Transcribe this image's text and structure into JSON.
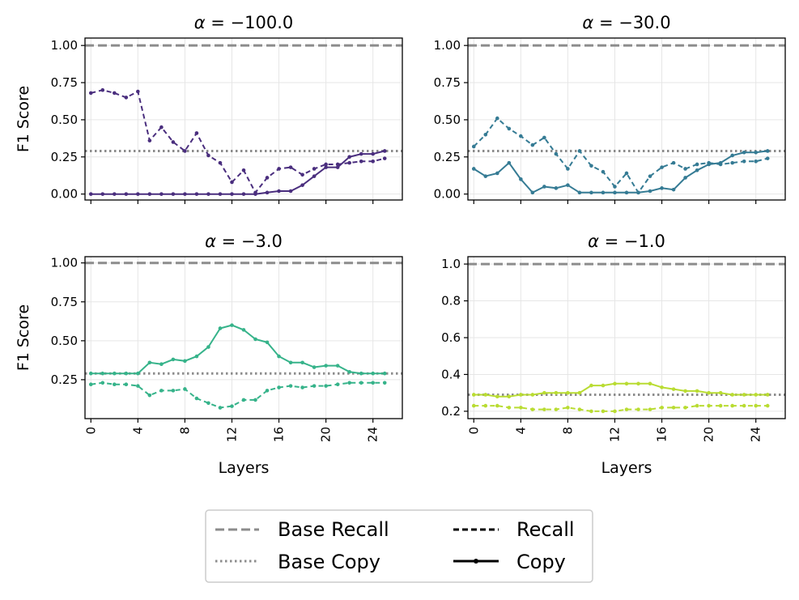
{
  "chart_data": {
    "type": "line",
    "x": [
      0,
      1,
      2,
      3,
      4,
      5,
      6,
      7,
      8,
      9,
      10,
      11,
      12,
      13,
      14,
      15,
      16,
      17,
      18,
      19,
      20,
      21,
      22,
      23,
      24,
      25
    ],
    "x_ticks": [
      "0",
      "4",
      "8",
      "12",
      "16",
      "20",
      "24"
    ],
    "x_tick_values": [
      0,
      4,
      8,
      12,
      16,
      20,
      24
    ],
    "xlim": [
      -0.5,
      26.5
    ],
    "xlabel": "Layers",
    "ylabel": "F1 Score",
    "base_recall": 1.0,
    "base_copy": 0.29,
    "legend": {
      "position": "bottom-center",
      "entries": [
        "Base Recall",
        "Base Copy",
        "Recall",
        "Copy"
      ]
    },
    "panels": [
      {
        "title": "α = −100.0",
        "title_prefix": "α",
        "title_value": "−100.0",
        "color": "#4a2e7e",
        "ylim": [
          -0.04,
          1.05
        ],
        "y_ticks": [
          "0.00",
          "0.25",
          "0.50",
          "0.75",
          "1.00"
        ],
        "y_tick_values": [
          0,
          0.25,
          0.5,
          0.75,
          1.0
        ],
        "show_xlabel": false,
        "show_ylabel": true,
        "recall": [
          0.68,
          0.7,
          0.68,
          0.65,
          0.69,
          0.36,
          0.45,
          0.35,
          0.29,
          0.41,
          0.26,
          0.21,
          0.08,
          0.16,
          0.01,
          0.11,
          0.17,
          0.18,
          0.13,
          0.17,
          0.2,
          0.2,
          0.21,
          0.22,
          0.22,
          0.24
        ],
        "copy": [
          0,
          0,
          0,
          0,
          0,
          0,
          0,
          0,
          0,
          0,
          0,
          0,
          0,
          0,
          0,
          0.01,
          0.02,
          0.02,
          0.06,
          0.12,
          0.18,
          0.18,
          0.25,
          0.27,
          0.27,
          0.29
        ]
      },
      {
        "title": "α = −30.0",
        "title_prefix": "α",
        "title_value": "−30.0",
        "color": "#357b94",
        "ylim": [
          -0.04,
          1.05
        ],
        "y_ticks": [
          "0.00",
          "0.25",
          "0.50",
          "0.75",
          "1.00"
        ],
        "y_tick_values": [
          0,
          0.25,
          0.5,
          0.75,
          1.0
        ],
        "show_xlabel": false,
        "show_ylabel": false,
        "recall": [
          0.32,
          0.4,
          0.51,
          0.44,
          0.39,
          0.33,
          0.38,
          0.27,
          0.17,
          0.29,
          0.19,
          0.15,
          0.05,
          0.14,
          0.01,
          0.12,
          0.18,
          0.21,
          0.17,
          0.2,
          0.21,
          0.2,
          0.21,
          0.22,
          0.22,
          0.24
        ],
        "copy": [
          0.17,
          0.12,
          0.14,
          0.21,
          0.1,
          0.01,
          0.05,
          0.04,
          0.06,
          0.01,
          0.01,
          0.01,
          0.01,
          0.01,
          0.01,
          0.02,
          0.04,
          0.03,
          0.11,
          0.16,
          0.2,
          0.21,
          0.26,
          0.28,
          0.28,
          0.29
        ]
      },
      {
        "title": "α = −3.0",
        "title_prefix": "α",
        "title_value": "−3.0",
        "color": "#36b38a",
        "ylim": [
          0.0,
          1.04
        ],
        "y_ticks": [
          "0.25",
          "0.50",
          "0.75",
          "1.00"
        ],
        "y_tick_values": [
          0.25,
          0.5,
          0.75,
          1.0
        ],
        "show_xlabel": true,
        "show_ylabel": true,
        "recall": [
          0.22,
          0.23,
          0.22,
          0.22,
          0.21,
          0.15,
          0.18,
          0.18,
          0.19,
          0.13,
          0.1,
          0.07,
          0.08,
          0.12,
          0.12,
          0.18,
          0.2,
          0.21,
          0.2,
          0.21,
          0.21,
          0.22,
          0.23,
          0.23,
          0.23,
          0.23
        ],
        "copy": [
          0.29,
          0.29,
          0.29,
          0.29,
          0.29,
          0.36,
          0.35,
          0.38,
          0.37,
          0.4,
          0.46,
          0.58,
          0.6,
          0.57,
          0.51,
          0.49,
          0.4,
          0.36,
          0.36,
          0.33,
          0.34,
          0.34,
          0.3,
          0.29,
          0.29,
          0.29
        ]
      },
      {
        "title": "α = −1.0",
        "title_prefix": "α",
        "title_value": "−1.0",
        "color": "#b9dc32",
        "ylim": [
          0.16,
          1.04
        ],
        "y_ticks": [
          "0.2",
          "0.4",
          "0.6",
          "0.8",
          "1.0"
        ],
        "y_tick_values": [
          0.2,
          0.4,
          0.6,
          0.8,
          1.0
        ],
        "show_xlabel": true,
        "show_ylabel": false,
        "recall": [
          0.23,
          0.23,
          0.23,
          0.22,
          0.22,
          0.21,
          0.21,
          0.21,
          0.22,
          0.21,
          0.2,
          0.2,
          0.2,
          0.21,
          0.21,
          0.21,
          0.22,
          0.22,
          0.22,
          0.23,
          0.23,
          0.23,
          0.23,
          0.23,
          0.23,
          0.23
        ],
        "copy": [
          0.29,
          0.29,
          0.28,
          0.28,
          0.29,
          0.29,
          0.3,
          0.3,
          0.3,
          0.3,
          0.34,
          0.34,
          0.35,
          0.35,
          0.35,
          0.35,
          0.33,
          0.32,
          0.31,
          0.31,
          0.3,
          0.3,
          0.29,
          0.29,
          0.29,
          0.29
        ]
      }
    ]
  }
}
